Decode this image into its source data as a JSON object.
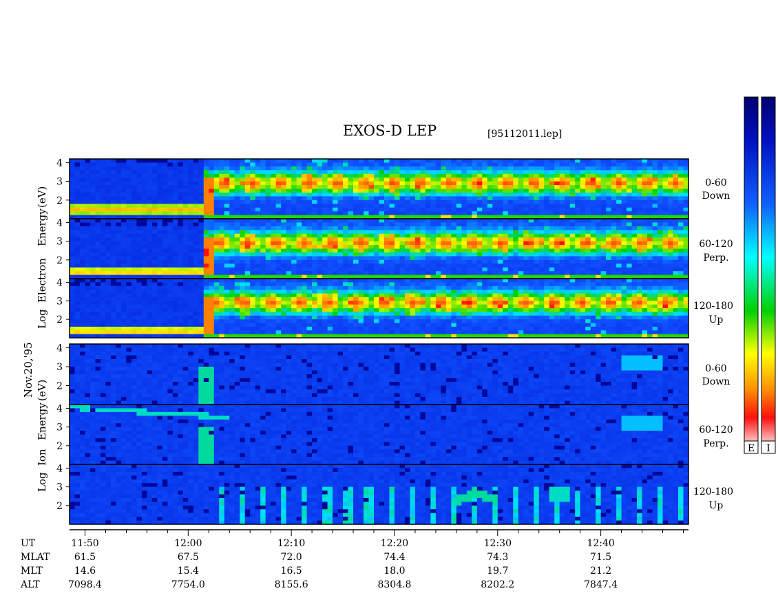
{
  "chart_data": {
    "type": "heatmap",
    "title": "EXOS-D LEP",
    "file_label": "[95112011.lep]",
    "date_label": "Nov.20,'95",
    "groups": [
      {
        "name": "electron",
        "ylabel_words": [
          "Log",
          "Electron",
          "Energy",
          "(eV)"
        ],
        "panels": [
          {
            "channel_line1": "0-60",
            "channel_line2": "Down",
            "yticks": [
              "4",
              "3",
              "2"
            ]
          },
          {
            "channel_line1": "60-120",
            "channel_line2": "Perp.",
            "yticks": [
              "4",
              "3",
              "2"
            ]
          },
          {
            "channel_line1": "120-180",
            "channel_line2": "Up",
            "yticks": [
              "4",
              "3",
              "2"
            ]
          }
        ]
      },
      {
        "name": "ion",
        "ylabel_words": [
          "Log",
          "Ion",
          "Energy",
          "(eV)"
        ],
        "panels": [
          {
            "channel_line1": "0-60",
            "channel_line2": "Down",
            "yticks": [
              "4",
              "3",
              "2"
            ]
          },
          {
            "channel_line1": "60-120",
            "channel_line2": "Perp.",
            "yticks": [
              "4",
              "3",
              "2"
            ]
          },
          {
            "channel_line1": "120-180",
            "channel_line2": "Up",
            "yticks": [
              "4",
              "3",
              "2"
            ]
          }
        ]
      }
    ],
    "x_ticks": [
      "11:50",
      "12:00",
      "12:10",
      "12:20",
      "12:30",
      "12:40"
    ],
    "x_tick_minutes": [
      50,
      60,
      70,
      80,
      90,
      100
    ],
    "x_range_minutes": [
      48.5,
      108.5
    ],
    "y_range": [
      1,
      4.2
    ],
    "footer": {
      "UT": {
        "label": "UT"
      },
      "MLAT": {
        "label": "MLAT",
        "values": [
          "61.5",
          "67.5",
          "72.0",
          "74.4",
          "74.3",
          "71.5"
        ]
      },
      "MLT": {
        "label": "MLT",
        "values": [
          "14.6",
          "15.4",
          "16.5",
          "18.0",
          "19.7",
          "21.2"
        ]
      },
      "ALT": {
        "label": "ALT",
        "values": [
          "7098.4",
          "7754.0",
          "8155.6",
          "8304.8",
          "8202.2",
          "7847.4"
        ]
      }
    },
    "colorbars": [
      {
        "label": "E"
      },
      {
        "label": "I"
      }
    ],
    "colormap": [
      "#ffffff",
      "#ff1010",
      "#ff8800",
      "#ffff00",
      "#00d000",
      "#00ffff",
      "#1040ff",
      "#000080"
    ]
  }
}
